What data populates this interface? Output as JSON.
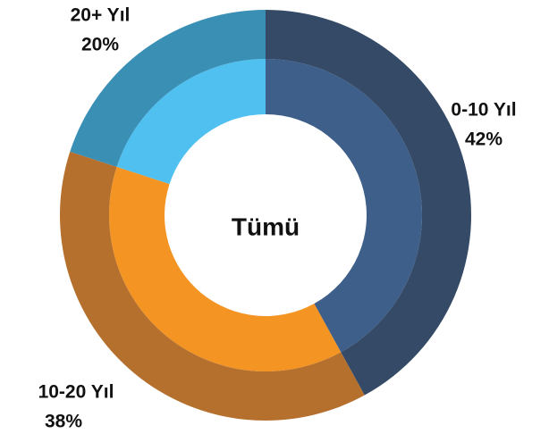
{
  "chart_data": {
    "type": "donut",
    "center_label": "Tümü",
    "categories": [
      "0-10 Yıl",
      "10-20 Yıl",
      "20+ Yıl"
    ],
    "values": [
      42,
      38,
      20
    ],
    "value_labels": [
      "42%",
      "38%",
      "20%"
    ],
    "colors": [
      "#344a66",
      "#b5702e",
      "#3a8fb5"
    ],
    "inner_colors": [
      "#3d5f8a",
      "#f39423",
      "#4fc0ef"
    ]
  }
}
